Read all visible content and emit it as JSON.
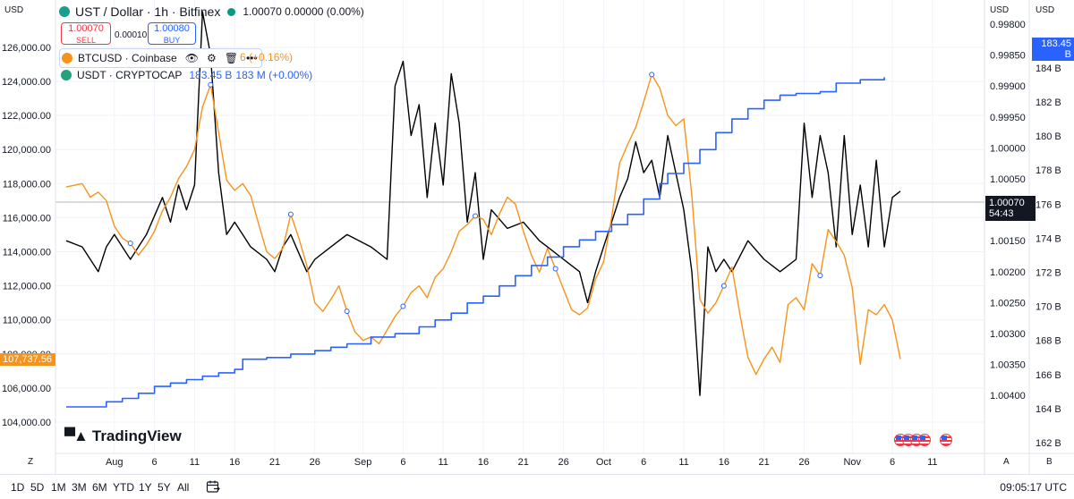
{
  "header": {
    "symbol_title": "UST / Dollar · 1h · Bitfinex",
    "ohlc_value": "1.00070 0.00000 (0.00%)",
    "sell_price": "1.00070",
    "sell_label": "SELL",
    "spread": "0.00010",
    "buy_price": "1.00080",
    "buy_label": "BUY"
  },
  "overlays": {
    "btc_label": "BTCUSD · Coinbase",
    "btc_change": "6 (+0.16%)",
    "usdt_label": "USDT · CRYPTOCAP",
    "usdt_value": "183.45 B",
    "usdt_change": "183 M (+0.00%)"
  },
  "axes": {
    "left_currency": "USD",
    "right_currency": "USD",
    "far_right_currency": "USD",
    "left_ticks": [
      "104,000.00",
      "106,000.00",
      "108,000.00",
      "110,000.00",
      "112,000.00",
      "114,000.00",
      "116,000.00",
      "118,000.00",
      "120,000.00",
      "122,000.00",
      "124,000.00",
      "126,000.00"
    ],
    "left_tick_values": [
      104000,
      106000,
      108000,
      110000,
      112000,
      114000,
      116000,
      118000,
      120000,
      122000,
      124000,
      126000
    ],
    "mid_ticks": [
      "0.99800",
      "0.99850",
      "0.99900",
      "0.99950",
      "1.00000",
      "1.00050",
      "1.00100",
      "1.00150",
      "1.00200",
      "1.00250",
      "1.00300",
      "1.00350",
      "1.00400"
    ],
    "mid_tick_values": [
      0.998,
      0.9985,
      0.999,
      0.9995,
      1.0,
      1.0005,
      1.001,
      1.0015,
      1.002,
      1.0025,
      1.003,
      1.0035,
      1.004
    ],
    "right_ticks": [
      "162 B",
      "164 B",
      "166 B",
      "168 B",
      "170 B",
      "172 B",
      "174 B",
      "176 B",
      "178 B",
      "180 B",
      "182 B",
      "184 B"
    ],
    "right_tick_values": [
      162,
      164,
      166,
      168,
      170,
      172,
      174,
      176,
      178,
      180,
      182,
      184
    ],
    "x_ticks": [
      {
        "label": "Aug",
        "day": 1
      },
      {
        "label": "6",
        "day": 6
      },
      {
        "label": "11",
        "day": 11
      },
      {
        "label": "16",
        "day": 16
      },
      {
        "label": "21",
        "day": 21
      },
      {
        "label": "26",
        "day": 26
      },
      {
        "label": "Sep",
        "day": 32
      },
      {
        "label": "6",
        "day": 37
      },
      {
        "label": "11",
        "day": 42
      },
      {
        "label": "16",
        "day": 47
      },
      {
        "label": "21",
        "day": 52
      },
      {
        "label": "26",
        "day": 57
      },
      {
        "label": "Oct",
        "day": 62
      },
      {
        "label": "6",
        "day": 67
      },
      {
        "label": "11",
        "day": 72
      },
      {
        "label": "16",
        "day": 77
      },
      {
        "label": "21",
        "day": 82
      },
      {
        "label": "26",
        "day": 87
      },
      {
        "label": "Nov",
        "day": 93
      },
      {
        "label": "6",
        "day": 98
      },
      {
        "label": "11",
        "day": 103
      }
    ],
    "z_label": "Z",
    "a_label": "A",
    "b_label": "B"
  },
  "price_tags": {
    "btc": "107,737.56",
    "ust_price": "1.00070",
    "ust_countdown": "54:43",
    "usdt": "183.45 B"
  },
  "colors": {
    "ust_line": "#000000",
    "btc_line": "#f7931a",
    "usdt_line": "#2962ff",
    "sell": "#f23645",
    "buy": "#2962ff"
  },
  "logo": "TradingView",
  "toolbar": {
    "ranges": [
      "1D",
      "5D",
      "1M",
      "3M",
      "6M",
      "YTD",
      "1Y",
      "5Y",
      "All"
    ],
    "clock": "09:05:17 UTC"
  },
  "chart_data": {
    "type": "line",
    "x_unit": "days since Aug 1",
    "series": [
      {
        "name": "UST / Dollar · 1h · Bitfinex",
        "axis": "middle (inverted)",
        "points": [
          [
            -5,
            1.0015
          ],
          [
            -3,
            1.0016
          ],
          [
            -1,
            1.002
          ],
          [
            0,
            1.0016
          ],
          [
            1,
            1.0014
          ],
          [
            3,
            1.0018
          ],
          [
            5,
            1.0014
          ],
          [
            7,
            1.0008
          ],
          [
            8,
            1.0012
          ],
          [
            9,
            1.0006
          ],
          [
            10,
            1.001
          ],
          [
            11,
            1.0006
          ],
          [
            12,
            0.9978
          ],
          [
            13,
            0.9985
          ],
          [
            14,
            1.0004
          ],
          [
            15,
            1.0014
          ],
          [
            16,
            1.0012
          ],
          [
            18,
            1.0016
          ],
          [
            20,
            1.0018
          ],
          [
            21,
            1.002
          ],
          [
            22,
            1.0016
          ],
          [
            23,
            1.0014
          ],
          [
            25,
            1.002
          ],
          [
            26,
            1.0018
          ],
          [
            28,
            1.0016
          ],
          [
            30,
            1.0014
          ],
          [
            33,
            1.0016
          ],
          [
            35,
            1.0018
          ],
          [
            36,
            0.999
          ],
          [
            37,
            0.9986
          ],
          [
            38,
            0.9998
          ],
          [
            39,
            0.9993
          ],
          [
            40,
            1.0008
          ],
          [
            41,
            0.9996
          ],
          [
            42,
            1.0006
          ],
          [
            43,
            0.9988
          ],
          [
            44,
            0.9996
          ],
          [
            45,
            1.0012
          ],
          [
            46,
            1.0004
          ],
          [
            47,
            1.0018
          ],
          [
            48,
            1.001
          ],
          [
            50,
            1.0013
          ],
          [
            52,
            1.0012
          ],
          [
            54,
            1.0015
          ],
          [
            55,
            1.0016
          ],
          [
            57,
            1.0018
          ],
          [
            59,
            1.002
          ],
          [
            60,
            1.0025
          ],
          [
            61,
            1.002
          ],
          [
            62,
            1.0016
          ],
          [
            63,
            1.0012
          ],
          [
            64,
            1.0008
          ],
          [
            65,
            1.0005
          ],
          [
            66,
            0.9999
          ],
          [
            67,
            1.0004
          ],
          [
            68,
            1.0002
          ],
          [
            69,
            1.0008
          ],
          [
            70,
            0.9998
          ],
          [
            72,
            1.001
          ],
          [
            73,
            1.002
          ],
          [
            74,
            1.004
          ],
          [
            75,
            1.0016
          ],
          [
            76,
            1.002
          ],
          [
            77,
            1.0018
          ],
          [
            78,
            1.002
          ],
          [
            80,
            1.0015
          ],
          [
            82,
            1.0018
          ],
          [
            84,
            1.002
          ],
          [
            86,
            1.0018
          ],
          [
            87,
            0.9996
          ],
          [
            88,
            1.0008
          ],
          [
            89,
            0.9998
          ],
          [
            90,
            1.0004
          ],
          [
            91,
            1.0016
          ],
          [
            92,
            0.9998
          ],
          [
            93,
            1.0014
          ],
          [
            94,
            1.0006
          ],
          [
            95,
            1.0016
          ],
          [
            96,
            1.0002
          ],
          [
            97,
            1.0016
          ],
          [
            98,
            1.0008
          ],
          [
            99,
            1.0007
          ]
        ]
      },
      {
        "name": "BTCUSD · Coinbase",
        "axis": "left",
        "points": [
          [
            -5,
            117800
          ],
          [
            -3,
            118000
          ],
          [
            -2,
            117200
          ],
          [
            -1,
            117500
          ],
          [
            0,
            117000
          ],
          [
            1,
            115500
          ],
          [
            2,
            114800
          ],
          [
            3,
            114500
          ],
          [
            4,
            113800
          ],
          [
            5,
            114400
          ],
          [
            6,
            115200
          ],
          [
            7,
            116400
          ],
          [
            8,
            117200
          ],
          [
            9,
            118300
          ],
          [
            10,
            119000
          ],
          [
            11,
            120000
          ],
          [
            12,
            122500
          ],
          [
            13,
            123800
          ],
          [
            14,
            121000
          ],
          [
            15,
            118200
          ],
          [
            16,
            117600
          ],
          [
            17,
            118000
          ],
          [
            18,
            117300
          ],
          [
            19,
            115600
          ],
          [
            20,
            114000
          ],
          [
            21,
            113600
          ],
          [
            22,
            114200
          ],
          [
            23,
            116200
          ],
          [
            24,
            114800
          ],
          [
            25,
            113200
          ],
          [
            26,
            111000
          ],
          [
            27,
            110500
          ],
          [
            28,
            111200
          ],
          [
            29,
            112000
          ],
          [
            30,
            110500
          ],
          [
            31,
            109300
          ],
          [
            32,
            108800
          ],
          [
            33,
            109000
          ],
          [
            34,
            108600
          ],
          [
            35,
            109400
          ],
          [
            36,
            110200
          ],
          [
            37,
            110800
          ],
          [
            38,
            111600
          ],
          [
            39,
            112000
          ],
          [
            40,
            111300
          ],
          [
            41,
            112500
          ],
          [
            42,
            113000
          ],
          [
            43,
            114000
          ],
          [
            44,
            115200
          ],
          [
            45,
            115600
          ],
          [
            46,
            116100
          ],
          [
            47,
            115900
          ],
          [
            48,
            115000
          ],
          [
            49,
            116200
          ],
          [
            50,
            117200
          ],
          [
            51,
            116800
          ],
          [
            52,
            115200
          ],
          [
            53,
            113800
          ],
          [
            54,
            112800
          ],
          [
            55,
            114200
          ],
          [
            56,
            113000
          ],
          [
            57,
            111800
          ],
          [
            58,
            110600
          ],
          [
            59,
            110300
          ],
          [
            60,
            110700
          ],
          [
            61,
            112400
          ],
          [
            62,
            113400
          ],
          [
            63,
            116000
          ],
          [
            64,
            119200
          ],
          [
            65,
            120300
          ],
          [
            66,
            121300
          ],
          [
            67,
            122800
          ],
          [
            68,
            124400
          ],
          [
            69,
            123600
          ],
          [
            70,
            122000
          ],
          [
            71,
            121400
          ],
          [
            72,
            121800
          ],
          [
            73,
            117300
          ],
          [
            74,
            111200
          ],
          [
            75,
            110400
          ],
          [
            76,
            111000
          ],
          [
            77,
            112000
          ],
          [
            78,
            113100
          ],
          [
            79,
            110300
          ],
          [
            80,
            107800
          ],
          [
            81,
            106800
          ],
          [
            82,
            107700
          ],
          [
            83,
            108400
          ],
          [
            84,
            107500
          ],
          [
            85,
            110900
          ],
          [
            86,
            111300
          ],
          [
            87,
            110600
          ],
          [
            88,
            113300
          ],
          [
            89,
            112600
          ],
          [
            90,
            115300
          ],
          [
            91,
            114600
          ],
          [
            92,
            113800
          ],
          [
            93,
            111900
          ],
          [
            94,
            107400
          ],
          [
            95,
            110600
          ],
          [
            96,
            110300
          ],
          [
            97,
            110900
          ],
          [
            98,
            110000
          ],
          [
            99,
            107700
          ]
        ]
      },
      {
        "name": "USDT · CRYPTOCAP",
        "axis": "right",
        "points": [
          [
            -5,
            164.1
          ],
          [
            0,
            164.4
          ],
          [
            2,
            164.6
          ],
          [
            4,
            164.9
          ],
          [
            6,
            165.3
          ],
          [
            8,
            165.5
          ],
          [
            10,
            165.7
          ],
          [
            12,
            165.9
          ],
          [
            14,
            166.1
          ],
          [
            16,
            166.3
          ],
          [
            17,
            166.9
          ],
          [
            20,
            167.0
          ],
          [
            23,
            167.2
          ],
          [
            26,
            167.4
          ],
          [
            28,
            167.6
          ],
          [
            30,
            167.8
          ],
          [
            33,
            168.2
          ],
          [
            36,
            168.4
          ],
          [
            39,
            168.8
          ],
          [
            41,
            169.2
          ],
          [
            43,
            169.6
          ],
          [
            45,
            170.2
          ],
          [
            47,
            170.6
          ],
          [
            49,
            171.2
          ],
          [
            51,
            171.8
          ],
          [
            53,
            172.4
          ],
          [
            55,
            172.9
          ],
          [
            57,
            173.5
          ],
          [
            59,
            173.9
          ],
          [
            61,
            174.4
          ],
          [
            63,
            174.8
          ],
          [
            65,
            175.4
          ],
          [
            67,
            176.3
          ],
          [
            69,
            177.2
          ],
          [
            70,
            177.8
          ],
          [
            72,
            178.4
          ],
          [
            74,
            179.2
          ],
          [
            76,
            180.2
          ],
          [
            78,
            181.0
          ],
          [
            80,
            181.6
          ],
          [
            82,
            182.1
          ],
          [
            84,
            182.4
          ],
          [
            86,
            182.5
          ],
          [
            89,
            182.6
          ],
          [
            91,
            183.1
          ],
          [
            94,
            183.3
          ],
          [
            97,
            183.45
          ]
        ]
      }
    ],
    "ranges": {
      "left": [
        103800,
        126800
      ],
      "middle": [
        0.998,
        1.00418
      ],
      "right": [
        161.8,
        184.4
      ],
      "x": [
        -5,
        99
      ]
    }
  }
}
